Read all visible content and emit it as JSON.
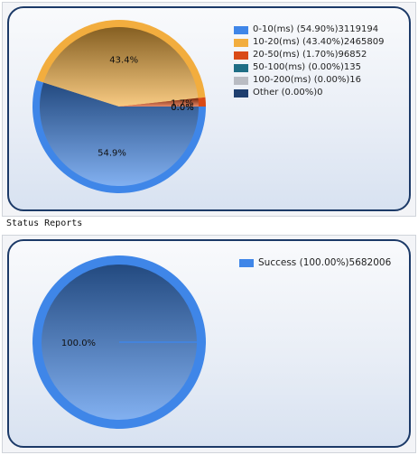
{
  "section_title": "Status Reports",
  "chart_data": [
    {
      "type": "pie",
      "slices": [
        {
          "label": "0-10(ms) (54.90%)3119194",
          "value": 54.9,
          "count": 3119194,
          "color": "#3f86e8",
          "data_label": "54.9%"
        },
        {
          "label": "10-20(ms) (43.40%)2465809",
          "value": 43.4,
          "count": 2465809,
          "color": "#f2ad3e",
          "data_label": "43.4%"
        },
        {
          "label": "20-50(ms) (1.70%)96852",
          "value": 1.7,
          "count": 96852,
          "color": "#d94a16",
          "data_label": "1.7%"
        },
        {
          "label": "50-100(ms) (0.00%)135",
          "value": 0.0,
          "count": 135,
          "color": "#1f6e85",
          "data_label": "0.0%"
        },
        {
          "label": "100-200(ms) (0.00%)16",
          "value": 0.0,
          "count": 16,
          "color": "#b9bcc3",
          "data_label": "0.0%"
        },
        {
          "label": "Other (0.00%)0",
          "value": 0.0,
          "count": 0,
          "color": "#1f3f6f",
          "data_label": ""
        }
      ],
      "legend_position": "top-right"
    },
    {
      "type": "pie",
      "slices": [
        {
          "label": "Success (100.00%)5682006",
          "value": 100.0,
          "count": 5682006,
          "color": "#3f86e8",
          "data_label": "100.0%"
        }
      ],
      "legend_position": "top-right"
    }
  ]
}
